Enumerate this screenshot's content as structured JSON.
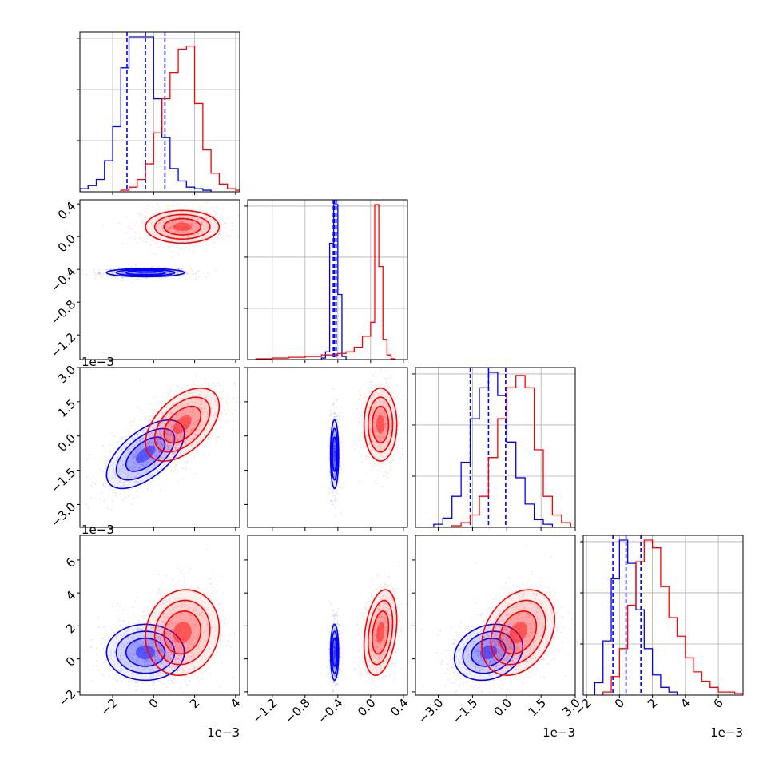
{
  "chart_data": {
    "type": "corner",
    "grid": true,
    "colors": {
      "blue": "#0000ff",
      "red": "#ff0000"
    },
    "variables": [
      {
        "range": [
          -3.6,
          4.2
        ],
        "ticks": [
          -2,
          0,
          2,
          4
        ],
        "tick_labels": [
          "−2",
          "0",
          "2",
          "4"
        ],
        "offset_text": "1e−3"
      },
      {
        "range": [
          -1.5,
          0.45
        ],
        "ticks": [
          -1.2,
          -0.8,
          -0.4,
          0.0,
          0.4
        ],
        "tick_labels": [
          "−1.2",
          "−0.8",
          "−0.4",
          "0.0",
          "0.4"
        ],
        "offset_text": ""
      },
      {
        "range": [
          -4.0,
          3.0
        ],
        "ticks": [
          -3.0,
          -1.5,
          0.0,
          1.5,
          3.0
        ],
        "tick_labels": [
          "−3.0",
          "−1.5",
          "0.0",
          "1.5",
          "3.0"
        ],
        "offset_text": "1e−3"
      },
      {
        "range": [
          -2.2,
          7.5
        ],
        "ticks": [
          -2,
          0,
          2,
          4,
          6
        ],
        "tick_labels": [
          "−2",
          "0",
          "2",
          "4",
          "6"
        ],
        "offset_text": "1e−3"
      }
    ],
    "series": [
      {
        "color": "#0000ff",
        "quantiles": [
          [
            -1.3,
            -0.4,
            0.55
          ],
          [
            -0.455,
            -0.44,
            -0.42
          ],
          [
            -1.6,
            -0.8,
            -0.05
          ],
          [
            -0.4,
            0.4,
            1.3
          ]
        ],
        "histograms": [
          {
            "edges": [
              -3.6,
              -3.2,
              -2.8,
              -2.4,
              -2.0,
              -1.6,
              -1.2,
              -0.8,
              -0.4,
              0.0,
              0.4,
              0.8,
              1.2,
              1.6,
              2.0,
              2.4,
              2.8
            ],
            "counts": [
              0.02,
              0.04,
              0.08,
              0.2,
              0.42,
              0.8,
              1.0,
              1.0,
              1.0,
              0.6,
              0.35,
              0.15,
              0.07,
              0.03,
              0.02,
              0.01
            ]
          },
          {
            "edges": [
              -0.6,
              -0.55,
              -0.5,
              -0.45,
              -0.4,
              -0.35,
              -0.3
            ],
            "counts": [
              0.01,
              0.05,
              0.75,
              1.0,
              0.42,
              0.02
            ]
          },
          {
            "edges": [
              -3.2,
              -2.8,
              -2.4,
              -2.0,
              -1.6,
              -1.2,
              -0.8,
              -0.4,
              0.0,
              0.4,
              0.8,
              1.2,
              1.6,
              2.0
            ],
            "counts": [
              0.02,
              0.06,
              0.2,
              0.42,
              0.7,
              0.9,
              1.0,
              0.85,
              0.55,
              0.32,
              0.15,
              0.05,
              0.02
            ]
          },
          {
            "edges": [
              -1.5,
              -1.0,
              -0.5,
              0.0,
              0.5,
              1.0,
              1.5,
              2.0,
              2.5,
              3.0,
              3.5
            ],
            "counts": [
              0.08,
              0.35,
              0.75,
              1.0,
              0.85,
              0.55,
              0.3,
              0.13,
              0.05,
              0.02
            ]
          }
        ],
        "means": [
          -0.4,
          -0.44,
          -0.8,
          0.4
        ],
        "sigmas": [
          0.95,
          0.025,
          0.75,
          0.85
        ],
        "correlations": {
          "1-0": 0.0,
          "2-0": 0.6,
          "2-1": 0.0,
          "3-0": 0.0,
          "3-1": 0.0,
          "3-2": 0.2
        }
      },
      {
        "color": "#ff0000",
        "quantiles": [],
        "histograms": [
          {
            "edges": [
              -1.6,
              -1.2,
              -0.8,
              -0.4,
              0.0,
              0.4,
              0.8,
              1.2,
              1.6,
              2.0,
              2.4,
              2.8,
              3.2,
              3.6,
              4.0,
              4.4,
              4.8
            ],
            "counts": [
              0.01,
              0.03,
              0.08,
              0.18,
              0.38,
              0.6,
              0.77,
              0.92,
              0.94,
              0.57,
              0.27,
              0.12,
              0.05,
              0.02,
              0.01,
              0.005
            ]
          },
          {
            "edges": [
              -1.4,
              -1.2,
              -1.0,
              -0.8,
              -0.6,
              -0.4,
              -0.3,
              -0.2,
              -0.1,
              0.0,
              0.05,
              0.1,
              0.15,
              0.2,
              0.25,
              0.3
            ],
            "counts": [
              0.005,
              0.01,
              0.015,
              0.02,
              0.03,
              0.04,
              0.05,
              0.08,
              0.15,
              0.24,
              1.0,
              0.6,
              0.13,
              0.03,
              0.005
            ]
          },
          {
            "edges": [
              -2.4,
              -2.0,
              -1.6,
              -1.2,
              -0.8,
              -0.4,
              0.0,
              0.4,
              0.8,
              1.2,
              1.6,
              2.0,
              2.4,
              2.8
            ],
            "counts": [
              0.01,
              0.03,
              0.08,
              0.2,
              0.45,
              0.7,
              0.9,
              0.98,
              0.9,
              0.5,
              0.2,
              0.08,
              0.03
            ]
          },
          {
            "edges": [
              -1.0,
              -0.5,
              0.0,
              0.5,
              1.0,
              1.5,
              2.0,
              2.5,
              3.0,
              3.5,
              4.0,
              4.5,
              5.0,
              5.5,
              6.0,
              7.0,
              7.5
            ],
            "counts": [
              0.02,
              0.12,
              0.3,
              0.58,
              0.86,
              1.0,
              0.95,
              0.7,
              0.5,
              0.38,
              0.24,
              0.15,
              0.09,
              0.05,
              0.02,
              0.01
            ]
          }
        ],
        "means": [
          1.4,
          0.12,
          0.5,
          1.6
        ],
        "sigmas": [
          0.9,
          0.1,
          0.8,
          1.3
        ],
        "correlations": {
          "1-0": 0.0,
          "2-0": 0.5,
          "2-1": 0.0,
          "3-0": 0.1,
          "3-1": 0.3,
          "3-2": 0.3
        }
      }
    ]
  }
}
